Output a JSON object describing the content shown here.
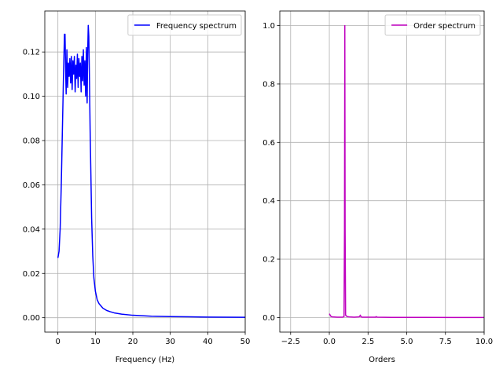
{
  "chart_data": [
    {
      "type": "line",
      "title": "",
      "xlabel": "Frequency (Hz)",
      "ylabel": "",
      "xlim": [
        -3.5,
        50
      ],
      "ylim": [
        -0.0065,
        0.1385
      ],
      "xticks": [
        "0",
        "10",
        "20",
        "30",
        "40",
        "50"
      ],
      "xtick_values": [
        0,
        10,
        20,
        30,
        40,
        50
      ],
      "yticks": [
        "0.00",
        "0.02",
        "0.04",
        "0.06",
        "0.08",
        "0.10",
        "0.12"
      ],
      "ytick_values": [
        0,
        0.02,
        0.04,
        0.06,
        0.08,
        0.1,
        0.12
      ],
      "grid": true,
      "legend_position": "upper-right",
      "series": [
        {
          "name": "Frequency spectrum",
          "color": "#0000ff",
          "x": [
            0,
            0.3,
            0.6,
            0.9,
            1.2,
            1.5,
            1.75,
            1.9,
            2.05,
            2.2,
            2.4,
            2.6,
            2.8,
            3.0,
            3.2,
            3.4,
            3.6,
            3.8,
            4.0,
            4.2,
            4.4,
            4.6,
            4.8,
            5.0,
            5.2,
            5.4,
            5.6,
            5.8,
            6.0,
            6.2,
            6.4,
            6.6,
            6.8,
            7.0,
            7.2,
            7.4,
            7.6,
            7.8,
            7.95,
            8.1,
            8.25,
            8.4,
            8.6,
            8.8,
            9.0,
            9.3,
            9.6,
            10.0,
            10.5,
            11.0,
            12.0,
            13.0,
            14.0,
            15.0,
            17.0,
            20.0,
            25.0,
            30.0,
            35.0,
            40.0,
            45.0,
            50.0
          ],
          "y": [
            0.027,
            0.03,
            0.04,
            0.06,
            0.085,
            0.11,
            0.128,
            0.128,
            0.113,
            0.101,
            0.121,
            0.104,
            0.115,
            0.109,
            0.117,
            0.106,
            0.118,
            0.103,
            0.116,
            0.11,
            0.118,
            0.102,
            0.114,
            0.108,
            0.119,
            0.104,
            0.117,
            0.109,
            0.115,
            0.102,
            0.118,
            0.107,
            0.121,
            0.105,
            0.116,
            0.1,
            0.122,
            0.097,
            0.12,
            0.132,
            0.127,
            0.11,
            0.085,
            0.065,
            0.045,
            0.028,
            0.018,
            0.012,
            0.008,
            0.0063,
            0.0043,
            0.0033,
            0.0027,
            0.0022,
            0.0016,
            0.0011,
            0.0007,
            0.0005,
            0.0004,
            0.0003,
            0.00025,
            0.0002
          ]
        }
      ]
    },
    {
      "type": "line",
      "title": "",
      "xlabel": "Orders",
      "ylabel": "",
      "xlim": [
        -3.2,
        10
      ],
      "ylim": [
        -0.05,
        1.05
      ],
      "xticks": [
        "−2.5",
        "0.0",
        "2.5",
        "5.0",
        "7.5",
        "10.0"
      ],
      "xtick_values": [
        -2.5,
        0,
        2.5,
        5,
        7.5,
        10
      ],
      "yticks": [
        "0.0",
        "0.2",
        "0.4",
        "0.6",
        "0.8",
        "1.0"
      ],
      "ytick_values": [
        0,
        0.2,
        0.4,
        0.6,
        0.8,
        1
      ],
      "grid": true,
      "legend_position": "upper-right",
      "series": [
        {
          "name": "Order spectrum",
          "color": "#bf00bf",
          "x": [
            0,
            0.1,
            0.2,
            0.5,
            0.85,
            0.95,
            0.98,
            1.0,
            1.02,
            1.05,
            1.15,
            1.3,
            1.6,
            1.9,
            1.97,
            2.0,
            2.03,
            2.1,
            2.5,
            3.0,
            3.02,
            3.1,
            4.0,
            6.0,
            8.0,
            10.0
          ],
          "y": [
            0.013,
            0.004,
            0.002,
            0.001,
            0.001,
            0.003,
            0.3,
            1.0,
            0.3,
            0.008,
            0.003,
            0.002,
            0.001,
            0.002,
            0.004,
            0.008,
            0.004,
            0.001,
            0.001,
            0.001,
            0.003,
            0.001,
            0.0006,
            0.0004,
            0.0002,
            0.0001
          ]
        }
      ]
    }
  ]
}
